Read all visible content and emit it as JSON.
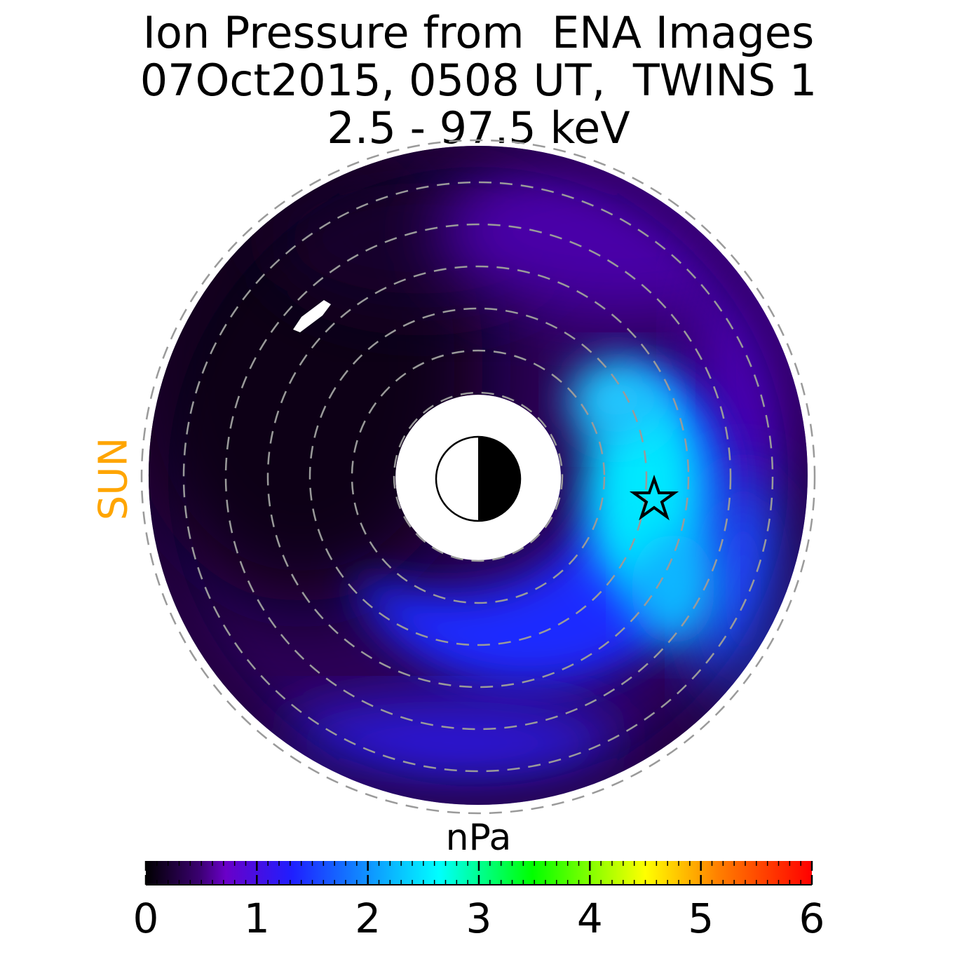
{
  "chart_data": {
    "type": "heatmap",
    "title": [
      "Ion Pressure from  ENA Images",
      "07Oct2015, 0508 UT,  TWINS 1",
      "2.5 - 97.5 keV"
    ],
    "side_label": "SUN",
    "colorbar": {
      "unit": "nPa",
      "range": [
        0,
        6
      ],
      "ticks": [
        "0",
        "1",
        "2",
        "3",
        "4",
        "5",
        "6"
      ],
      "colors": [
        "#000000",
        "#3a0070",
        "#6a00c8",
        "#1f1fff",
        "#00ffff",
        "#00ff00",
        "#ffff00",
        "#ff7f00",
        "#ff0000"
      ]
    },
    "grid": "dashed rings",
    "peak_marker": "star"
  }
}
